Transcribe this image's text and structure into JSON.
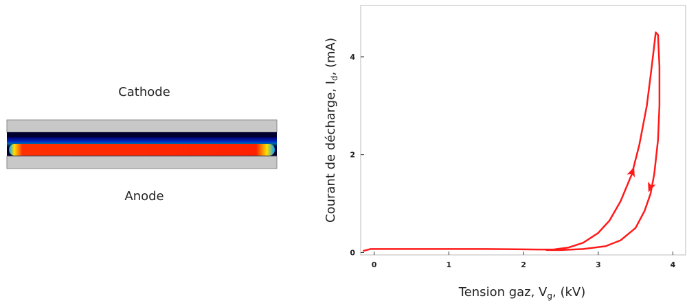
{
  "cathode_label": "Cathode",
  "anode_label": "Anode",
  "chart_data": {
    "type": "line",
    "xlabel": [
      "Tension gaz, V",
      "g",
      ", (kV)"
    ],
    "ylabel": [
      "Courant de décharge, I",
      "d",
      ", (mA)"
    ],
    "xlim": [
      -0.18,
      4.17
    ],
    "ylim": [
      -0.05,
      5.05
    ],
    "xticks": [
      0,
      1,
      2,
      3,
      4
    ],
    "yticks": [
      0,
      2,
      4
    ],
    "series": [
      {
        "color": "#ff1a1a",
        "x": [
          -0.15,
          -0.05,
          0.5,
          1.5,
          2.2,
          2.4,
          2.6,
          2.8,
          3.0,
          3.15,
          3.3,
          3.45,
          3.55,
          3.65,
          3.7,
          3.74,
          3.77,
          3.8,
          3.82,
          3.82,
          3.8,
          3.75,
          3.7,
          3.62,
          3.5,
          3.3,
          3.1,
          2.8,
          2.5,
          2.3
        ],
        "y": [
          0.03,
          0.07,
          0.07,
          0.07,
          0.06,
          0.06,
          0.1,
          0.2,
          0.4,
          0.65,
          1.05,
          1.6,
          2.2,
          3.0,
          3.6,
          4.1,
          4.5,
          4.45,
          3.8,
          3.0,
          2.3,
          1.6,
          1.2,
          0.85,
          0.5,
          0.25,
          0.13,
          0.07,
          0.05,
          0.05
        ]
      }
    ]
  }
}
